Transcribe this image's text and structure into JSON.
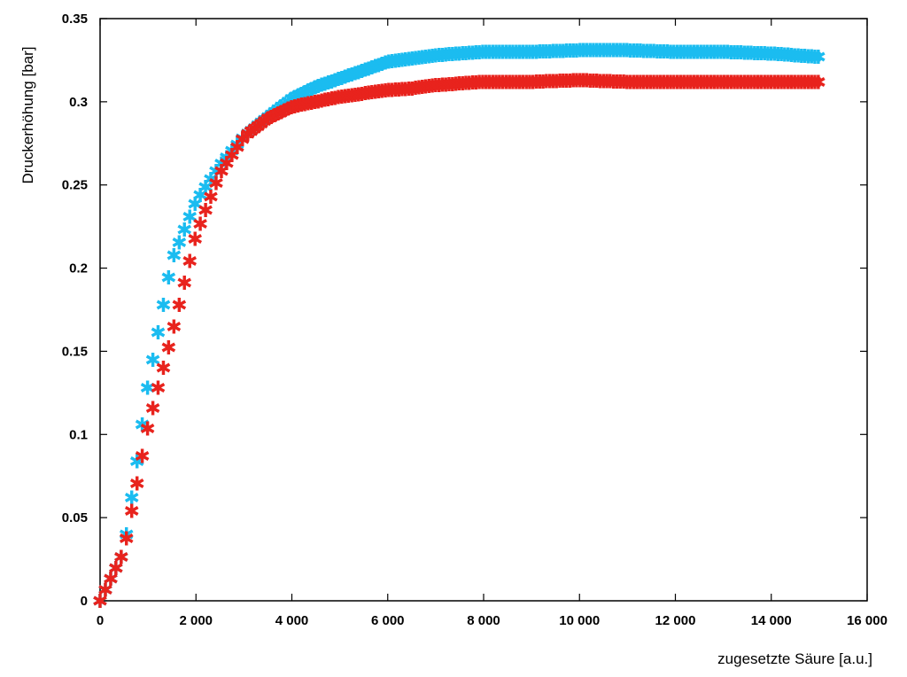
{
  "chart_data": {
    "type": "scatter",
    "title": "",
    "xlabel": "zugesetzte Säure [a.u.]",
    "ylabel": "Druckerhöhung [bar]",
    "xlim": [
      0,
      16000
    ],
    "ylim": [
      0,
      0.35
    ],
    "xticks": [
      0,
      2000,
      4000,
      6000,
      8000,
      10000,
      12000,
      14000,
      16000
    ],
    "xtick_labels": [
      "0",
      "2 000",
      "4 000",
      "6 000",
      "8 000",
      "10 000",
      "12 000",
      "14 000",
      "16 000"
    ],
    "yticks": [
      0,
      0.05,
      0.1,
      0.15,
      0.2,
      0.25,
      0.3,
      0.35
    ],
    "ytick_labels": [
      "0",
      "0.05",
      "0.1",
      "0.15",
      "0.2",
      "0.25",
      "0.3",
      "0.35"
    ],
    "grid": false,
    "legend": "none",
    "marker": "asterisk",
    "series": [
      {
        "color": "#1bbcf0",
        "x": [
          0,
          500,
          1000,
          1500,
          2000,
          2500,
          3000,
          3500,
          4000,
          4500,
          5000,
          5500,
          6000,
          6500,
          7000,
          7500,
          8000,
          9000,
          10000,
          11000,
          12000,
          13000,
          14000,
          15000
        ],
        "y": [
          0,
          0.03,
          0.13,
          0.205,
          0.24,
          0.262,
          0.279,
          0.291,
          0.302,
          0.309,
          0.314,
          0.319,
          0.324,
          0.326,
          0.328,
          0.329,
          0.33,
          0.33,
          0.331,
          0.331,
          0.33,
          0.33,
          0.329,
          0.327
        ]
      },
      {
        "color": "#e8231d",
        "x": [
          0,
          500,
          1000,
          1500,
          2000,
          2500,
          3000,
          3500,
          4000,
          4500,
          5000,
          5500,
          6000,
          6500,
          7000,
          7500,
          8000,
          9000,
          10000,
          11000,
          12000,
          13000,
          14000,
          15000
        ],
        "y": [
          0,
          0.03,
          0.105,
          0.16,
          0.22,
          0.257,
          0.279,
          0.29,
          0.297,
          0.3,
          0.303,
          0.305,
          0.307,
          0.308,
          0.31,
          0.311,
          0.312,
          0.312,
          0.313,
          0.312,
          0.312,
          0.312,
          0.312,
          0.312
        ]
      }
    ]
  }
}
